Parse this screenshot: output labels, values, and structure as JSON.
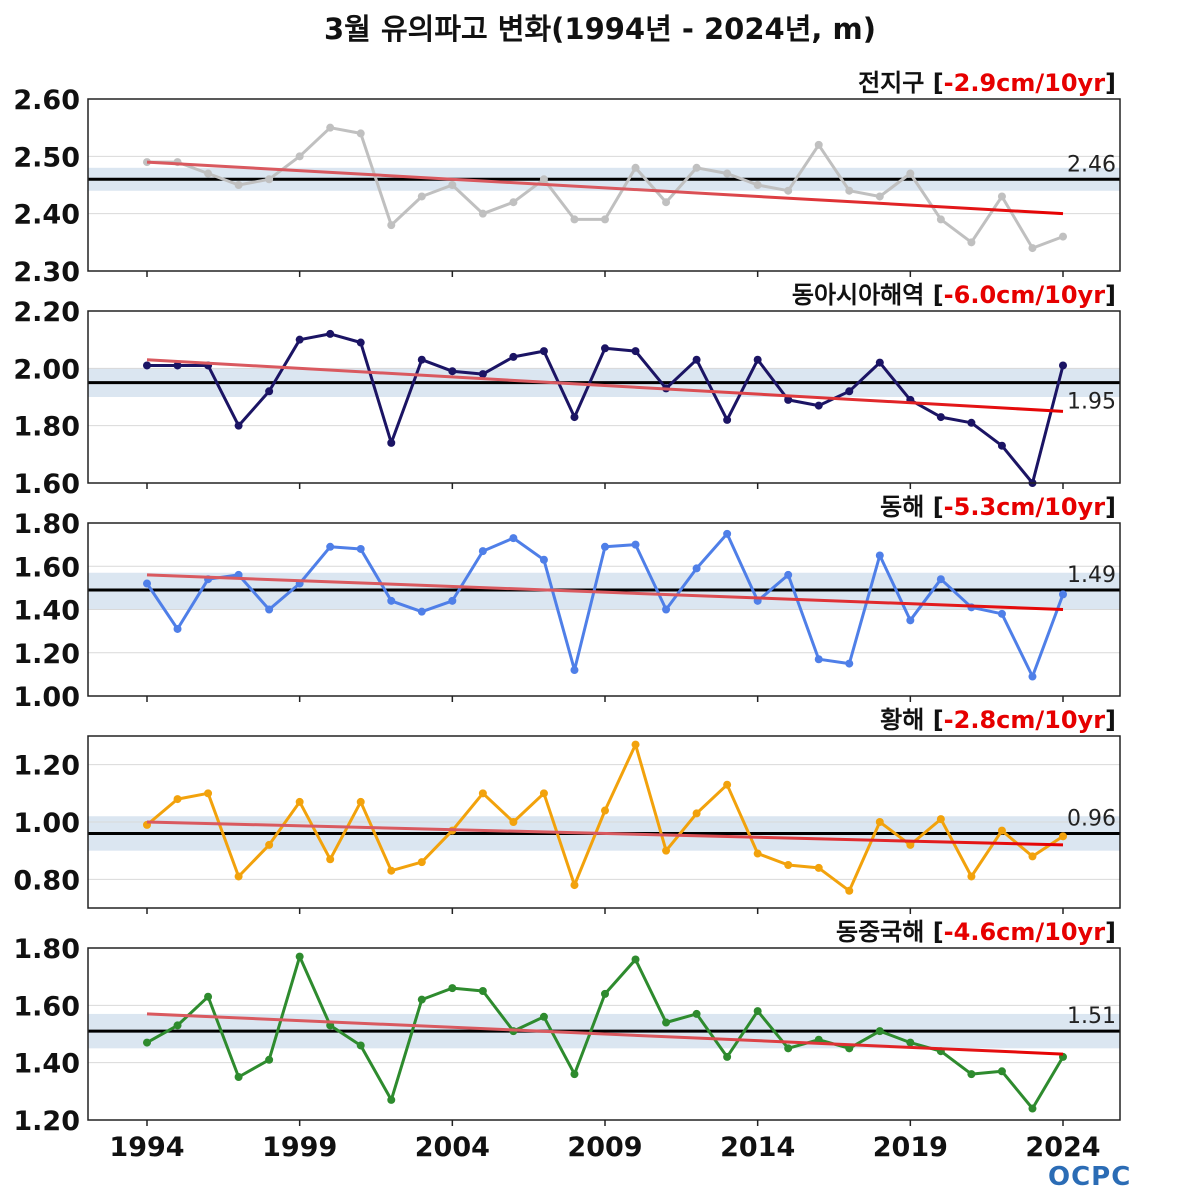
{
  "title": "3월 유의파고 변화(1994년 - 2024년, m)",
  "logo_text": "OCPC",
  "x_ticks": [
    "1994",
    "1999",
    "2004",
    "2009",
    "2014",
    "2019",
    "2024"
  ],
  "colors": {
    "trend": "#e60000",
    "trend_faded": "#d9595f",
    "mean": "#000000",
    "band": "#dbe6f1",
    "frame": "#222222",
    "grid": "#d9d9d9"
  },
  "chart_data": [
    {
      "type": "line",
      "name": "전지구",
      "trend_label": "-2.9cm/10yr",
      "mean": 2.46,
      "mean_label": "2.46",
      "mean_label_position": "above",
      "band": [
        2.44,
        2.48
      ],
      "ylim": [
        2.3,
        2.6
      ],
      "yticks": [
        "2.30",
        "2.40",
        "2.50",
        "2.60"
      ],
      "color": "#c0c0c0",
      "x": [
        1994,
        1995,
        1996,
        1997,
        1998,
        1999,
        2000,
        2001,
        2002,
        2003,
        2004,
        2005,
        2006,
        2007,
        2008,
        2009,
        2010,
        2011,
        2012,
        2013,
        2014,
        2015,
        2016,
        2017,
        2018,
        2019,
        2020,
        2021,
        2022,
        2023,
        2024
      ],
      "values": [
        2.49,
        2.49,
        2.47,
        2.45,
        2.46,
        2.5,
        2.55,
        2.54,
        2.38,
        2.43,
        2.45,
        2.4,
        2.42,
        2.46,
        2.39,
        2.39,
        2.48,
        2.42,
        2.48,
        2.47,
        2.45,
        2.44,
        2.52,
        2.44,
        2.43,
        2.47,
        2.39,
        2.35,
        2.43,
        2.34,
        2.36
      ],
      "trend": [
        2.49,
        2.4
      ]
    },
    {
      "type": "line",
      "name": "동아시아해역",
      "trend_label": "-6.0cm/10yr",
      "mean": 1.95,
      "mean_label": "1.95",
      "mean_label_position": "below",
      "band": [
        1.9,
        2.0
      ],
      "ylim": [
        1.6,
        2.2
      ],
      "yticks": [
        "1.60",
        "1.80",
        "2.00",
        "2.20"
      ],
      "color": "#1b1464",
      "x": [
        1994,
        1995,
        1996,
        1997,
        1998,
        1999,
        2000,
        2001,
        2002,
        2003,
        2004,
        2005,
        2006,
        2007,
        2008,
        2009,
        2010,
        2011,
        2012,
        2013,
        2014,
        2015,
        2016,
        2017,
        2018,
        2019,
        2020,
        2021,
        2022,
        2023,
        2024
      ],
      "values": [
        2.01,
        2.01,
        2.01,
        1.8,
        1.92,
        2.1,
        2.12,
        2.09,
        1.74,
        2.03,
        1.99,
        1.98,
        2.04,
        2.06,
        1.83,
        2.07,
        2.06,
        1.93,
        2.03,
        1.82,
        2.03,
        1.89,
        1.87,
        1.92,
        2.02,
        1.89,
        1.83,
        1.81,
        1.73,
        1.6,
        2.01
      ],
      "trend": [
        2.03,
        1.85
      ]
    },
    {
      "type": "line",
      "name": "동해",
      "trend_label": "-5.3cm/10yr",
      "mean": 1.49,
      "mean_label": "1.49",
      "mean_label_position": "above",
      "band": [
        1.4,
        1.57
      ],
      "ylim": [
        1.0,
        1.8
      ],
      "yticks": [
        "1.00",
        "1.20",
        "1.40",
        "1.60",
        "1.80"
      ],
      "color": "#4f7fe8",
      "x": [
        1994,
        1995,
        1996,
        1997,
        1998,
        1999,
        2000,
        2001,
        2002,
        2003,
        2004,
        2005,
        2006,
        2007,
        2008,
        2009,
        2010,
        2011,
        2012,
        2013,
        2014,
        2015,
        2016,
        2017,
        2018,
        2019,
        2020,
        2021,
        2022,
        2023,
        2024
      ],
      "values": [
        1.52,
        1.31,
        1.54,
        1.56,
        1.4,
        1.52,
        1.69,
        1.68,
        1.44,
        1.39,
        1.44,
        1.67,
        1.73,
        1.63,
        1.12,
        1.69,
        1.7,
        1.4,
        1.59,
        1.75,
        1.44,
        1.56,
        1.17,
        1.15,
        1.65,
        1.35,
        1.54,
        1.41,
        1.38,
        1.09,
        1.47
      ],
      "trend": [
        1.56,
        1.4
      ]
    },
    {
      "type": "line",
      "name": "황해",
      "trend_label": "-2.8cm/10yr",
      "mean": 0.96,
      "mean_label": "0.96",
      "mean_label_position": "above",
      "band": [
        0.9,
        1.02
      ],
      "ylim": [
        0.7,
        1.3
      ],
      "yticks": [
        "0.80",
        "1.00",
        "1.20"
      ],
      "color": "#f2a20c",
      "x": [
        1994,
        1995,
        1996,
        1997,
        1998,
        1999,
        2000,
        2001,
        2002,
        2003,
        2004,
        2005,
        2006,
        2007,
        2008,
        2009,
        2010,
        2011,
        2012,
        2013,
        2014,
        2015,
        2016,
        2017,
        2018,
        2019,
        2020,
        2021,
        2022,
        2023,
        2024
      ],
      "values": [
        0.99,
        1.08,
        1.1,
        0.81,
        0.92,
        1.07,
        0.87,
        1.07,
        0.83,
        0.86,
        0.97,
        1.1,
        1.0,
        1.1,
        0.78,
        1.04,
        1.27,
        0.9,
        1.03,
        1.13,
        0.89,
        0.85,
        0.84,
        0.76,
        1.0,
        0.92,
        1.01,
        0.81,
        0.97,
        0.88,
        0.95
      ],
      "trend": [
        1.0,
        0.92
      ]
    },
    {
      "type": "line",
      "name": "동중국해",
      "trend_label": "-4.6cm/10yr",
      "mean": 1.51,
      "mean_label": "1.51",
      "mean_label_position": "above",
      "band": [
        1.45,
        1.57
      ],
      "ylim": [
        1.2,
        1.8
      ],
      "yticks": [
        "1.20",
        "1.40",
        "1.60",
        "1.80"
      ],
      "color": "#2e8b2e",
      "x": [
        1994,
        1995,
        1996,
        1997,
        1998,
        1999,
        2000,
        2001,
        2002,
        2003,
        2004,
        2005,
        2006,
        2007,
        2008,
        2009,
        2010,
        2011,
        2012,
        2013,
        2014,
        2015,
        2016,
        2017,
        2018,
        2019,
        2020,
        2021,
        2022,
        2023,
        2024
      ],
      "values": [
        1.47,
        1.53,
        1.63,
        1.35,
        1.41,
        1.77,
        1.53,
        1.46,
        1.27,
        1.62,
        1.66,
        1.65,
        1.51,
        1.56,
        1.36,
        1.64,
        1.76,
        1.54,
        1.57,
        1.42,
        1.58,
        1.45,
        1.48,
        1.45,
        1.51,
        1.47,
        1.44,
        1.36,
        1.37,
        1.24,
        1.42
      ],
      "trend": [
        1.57,
        1.43
      ]
    }
  ]
}
